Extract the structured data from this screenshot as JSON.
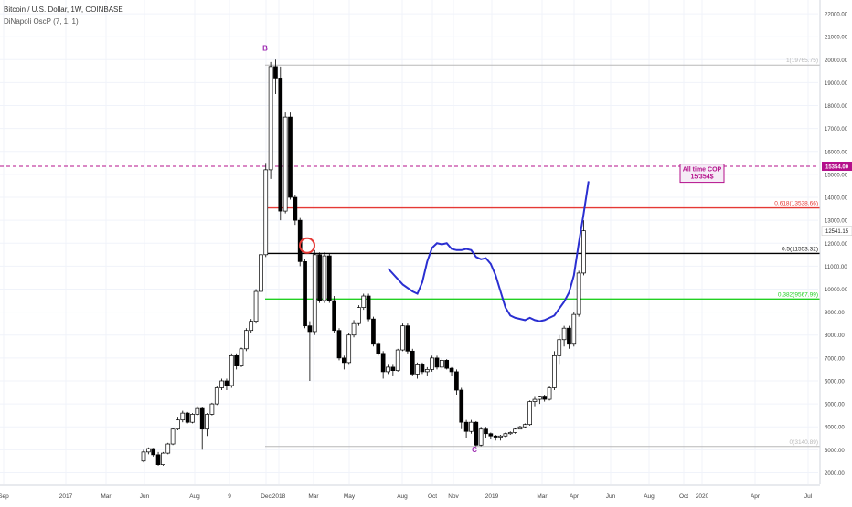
{
  "header": {
    "title": "Bitcoin / U.S. Dollar, 1W, COINBASE",
    "indicator": "DiNapoli OscP (7, 1, 1)"
  },
  "chart_data": {
    "type": "candlestick",
    "y_ticks": [
      2000,
      3000,
      4000,
      5000,
      6000,
      7000,
      8000,
      9000,
      10000,
      11000,
      12000,
      13000,
      14000,
      15000,
      16000,
      17000,
      18000,
      19000,
      20000,
      21000,
      22000
    ],
    "y_tick_labels": [
      "2000.00",
      "3000.00",
      "4000.00",
      "5000.00",
      "6000.00",
      "7000.00",
      "8000.00",
      "9000.00",
      "10000.00",
      "11000.00",
      "12000.00",
      "13000.00",
      "14000.00",
      "15000.00",
      "16000.00",
      "17000.00",
      "18000.00",
      "19000.00",
      "20000.00",
      "21000.00",
      "22000.00"
    ],
    "ylim": [
      1500,
      22600
    ],
    "x_labels": [
      "Sep",
      "2017",
      "Mar",
      "Jun",
      "Aug",
      "9",
      "Dec",
      "2018",
      "Mar",
      "May",
      "Aug",
      "Oct",
      "Nov",
      "2019",
      "Mar",
      "Apr",
      "Jun",
      "Aug",
      "Oct",
      "2020",
      "Apr",
      "Jul"
    ],
    "candles": [
      [
        2505,
        2900
      ],
      [
        2900,
        3050
      ],
      [
        3050,
        2780
      ],
      [
        2780,
        2350
      ],
      [
        2350,
        2850
      ],
      [
        2850,
        3250
      ],
      [
        3250,
        3900
      ],
      [
        3900,
        4300
      ],
      [
        4300,
        4600
      ],
      [
        4600,
        4200
      ],
      [
        4200,
        4550
      ],
      [
        4550,
        4800
      ],
      [
        4800,
        3900
      ],
      [
        3900,
        4550
      ],
      [
        4550,
        5000
      ],
      [
        5000,
        5700
      ],
      [
        5700,
        6000
      ],
      [
        6000,
        5800
      ],
      [
        5800,
        7100
      ],
      [
        7100,
        6650
      ],
      [
        6650,
        7400
      ],
      [
        7400,
        8200
      ],
      [
        8200,
        8600
      ],
      [
        8600,
        9900
      ],
      [
        9900,
        11500
      ],
      [
        11500,
        15200
      ],
      [
        15200,
        19700
      ],
      [
        19700,
        19200
      ],
      [
        19200,
        13400
      ],
      [
        13400,
        17500
      ],
      [
        17500,
        14000
      ],
      [
        14000,
        13000
      ],
      [
        13000,
        11200
      ],
      [
        11200,
        8400
      ],
      [
        8400,
        8150
      ],
      [
        8150,
        11500
      ],
      [
        11500,
        9500
      ],
      [
        9500,
        11450
      ],
      [
        11450,
        9500
      ],
      [
        9500,
        8200
      ],
      [
        8200,
        7000
      ],
      [
        7000,
        6800
      ],
      [
        6800,
        8000
      ],
      [
        8000,
        8500
      ],
      [
        8500,
        9200
      ],
      [
        9200,
        9700
      ],
      [
        9700,
        8700
      ],
      [
        8700,
        7600
      ],
      [
        7600,
        7200
      ],
      [
        7200,
        6400
      ],
      [
        6400,
        6600
      ],
      [
        6600,
        6450
      ],
      [
        6450,
        7350
      ],
      [
        7350,
        8400
      ],
      [
        8400,
        7300
      ],
      [
        7300,
        6300
      ],
      [
        6300,
        6700
      ],
      [
        6700,
        6400
      ],
      [
        6400,
        6500
      ],
      [
        6500,
        7000
      ],
      [
        7000,
        6600
      ],
      [
        6600,
        6900
      ],
      [
        6900,
        6550
      ],
      [
        6550,
        6400
      ],
      [
        6400,
        5600
      ],
      [
        5600,
        4200
      ],
      [
        4200,
        3800
      ],
      [
        3800,
        4200
      ],
      [
        4200,
        3200
      ],
      [
        3200,
        3900
      ],
      [
        3900,
        3700
      ],
      [
        3700,
        3600
      ],
      [
        3600,
        3550
      ],
      [
        3550,
        3600
      ],
      [
        3600,
        3700
      ],
      [
        3700,
        3750
      ],
      [
        3750,
        3900
      ],
      [
        3900,
        4000
      ],
      [
        4000,
        4100
      ],
      [
        4100,
        5100
      ],
      [
        5100,
        5200
      ],
      [
        5200,
        5300
      ],
      [
        5300,
        5200
      ],
      [
        5200,
        5700
      ],
      [
        5700,
        7100
      ],
      [
        7100,
        7800
      ],
      [
        7800,
        8300
      ],
      [
        8300,
        7600
      ],
      [
        7600,
        8900
      ],
      [
        8900,
        10700
      ],
      [
        10700,
        12541
      ]
    ],
    "highs": [
      3000,
      3100,
      3080,
      2900,
      2900,
      3300,
      3950,
      4400,
      4700,
      4650,
      4600,
      4900,
      4850,
      4600,
      5050,
      5800,
      6100,
      6100,
      7200,
      7200,
      7450,
      8300,
      8700,
      10000,
      11800,
      15500,
      19900,
      20000,
      19700,
      17700,
      17700,
      14100,
      13100,
      11300,
      8600,
      11700,
      11600,
      11600,
      11550,
      9700,
      8300,
      7100,
      8100,
      8650,
      9300,
      9800,
      9800,
      8800,
      7700,
      7300,
      6700,
      6700,
      7400,
      8500,
      8500,
      7400,
      6800,
      6800,
      6600,
      7100,
      7100,
      7000,
      6950,
      6600,
      6500,
      5700,
      4300,
      4300,
      4250,
      4000,
      4000,
      3750,
      3650,
      3650,
      3750,
      3800,
      3950,
      4050,
      4150,
      5150,
      5300,
      5350,
      5400,
      5800,
      7300,
      8000,
      8400,
      8400,
      9000,
      10800,
      13000
    ],
    "lows": [
      2450,
      2800,
      2700,
      2300,
      2300,
      2800,
      3200,
      3850,
      4200,
      4150,
      4150,
      4500,
      3000,
      3600,
      4500,
      4950,
      5600,
      5600,
      5700,
      6500,
      6600,
      7300,
      8100,
      8500,
      9800,
      11400,
      14800,
      18500,
      13000,
      13300,
      13900,
      12800,
      11000,
      8300,
      6000,
      8000,
      9400,
      9400,
      9400,
      8100,
      6900,
      6500,
      6700,
      7900,
      8400,
      9100,
      8600,
      7500,
      7100,
      6100,
      6300,
      6200,
      6400,
      7300,
      7200,
      6200,
      6100,
      6300,
      6200,
      6400,
      6500,
      6500,
      6500,
      6200,
      5400,
      3900,
      3500,
      3700,
      3150,
      3150,
      3500,
      3450,
      3400,
      3400,
      3550,
      3650,
      3700,
      3900,
      3950,
      4050,
      4900,
      5000,
      5100,
      5150,
      5600,
      6700,
      7500,
      7400,
      7500,
      8800,
      10600
    ],
    "fib_levels": [
      {
        "label": "1(19765.75)",
        "value": 19765.75,
        "color": "#b8b8b8"
      },
      {
        "label": "0.618(13538.66)",
        "value": 13538.66,
        "color": "#e53935"
      },
      {
        "label": "0.5(11553.32)",
        "value": 11553.32,
        "color": "#000000"
      },
      {
        "label": "0.382(9567.99)",
        "value": 9567.99,
        "color": "#22d022"
      },
      {
        "label": "0(3140.89)",
        "value": 3140.89,
        "color": "#b8b8b8"
      }
    ],
    "ath_line": {
      "value": 15354,
      "label": "15354.00",
      "color": "#b4108b"
    },
    "last_price": {
      "value": 12541.15,
      "label": "12541.15"
    },
    "annotations": {
      "B": "B",
      "C": "C",
      "ath_box_line1": "All time COP",
      "ath_box_line2": "15'354$"
    },
    "oscillator": [
      [
        50,
        10900
      ],
      [
        53,
        10200
      ],
      [
        55,
        9900
      ],
      [
        56,
        9800
      ],
      [
        57,
        10300
      ],
      [
        58,
        11200
      ],
      [
        59,
        11800
      ],
      [
        60,
        12000
      ],
      [
        61,
        11950
      ],
      [
        62,
        12000
      ],
      [
        63,
        11750
      ],
      [
        64,
        11700
      ],
      [
        65,
        11700
      ],
      [
        66,
        11750
      ],
      [
        67,
        11700
      ],
      [
        68,
        11400
      ],
      [
        69,
        11300
      ],
      [
        70,
        11350
      ],
      [
        71,
        11100
      ],
      [
        72,
        10600
      ],
      [
        73,
        9900
      ],
      [
        74,
        9200
      ],
      [
        75,
        8850
      ],
      [
        76,
        8750
      ],
      [
        77,
        8700
      ],
      [
        78,
        8650
      ],
      [
        79,
        8750
      ],
      [
        80,
        8650
      ],
      [
        81,
        8600
      ],
      [
        82,
        8650
      ],
      [
        83,
        8750
      ],
      [
        84,
        8850
      ],
      [
        85,
        9150
      ],
      [
        86,
        9450
      ],
      [
        87,
        9850
      ],
      [
        88,
        10600
      ],
      [
        89,
        12000
      ],
      [
        90,
        13300
      ],
      [
        91,
        14700
      ]
    ]
  }
}
